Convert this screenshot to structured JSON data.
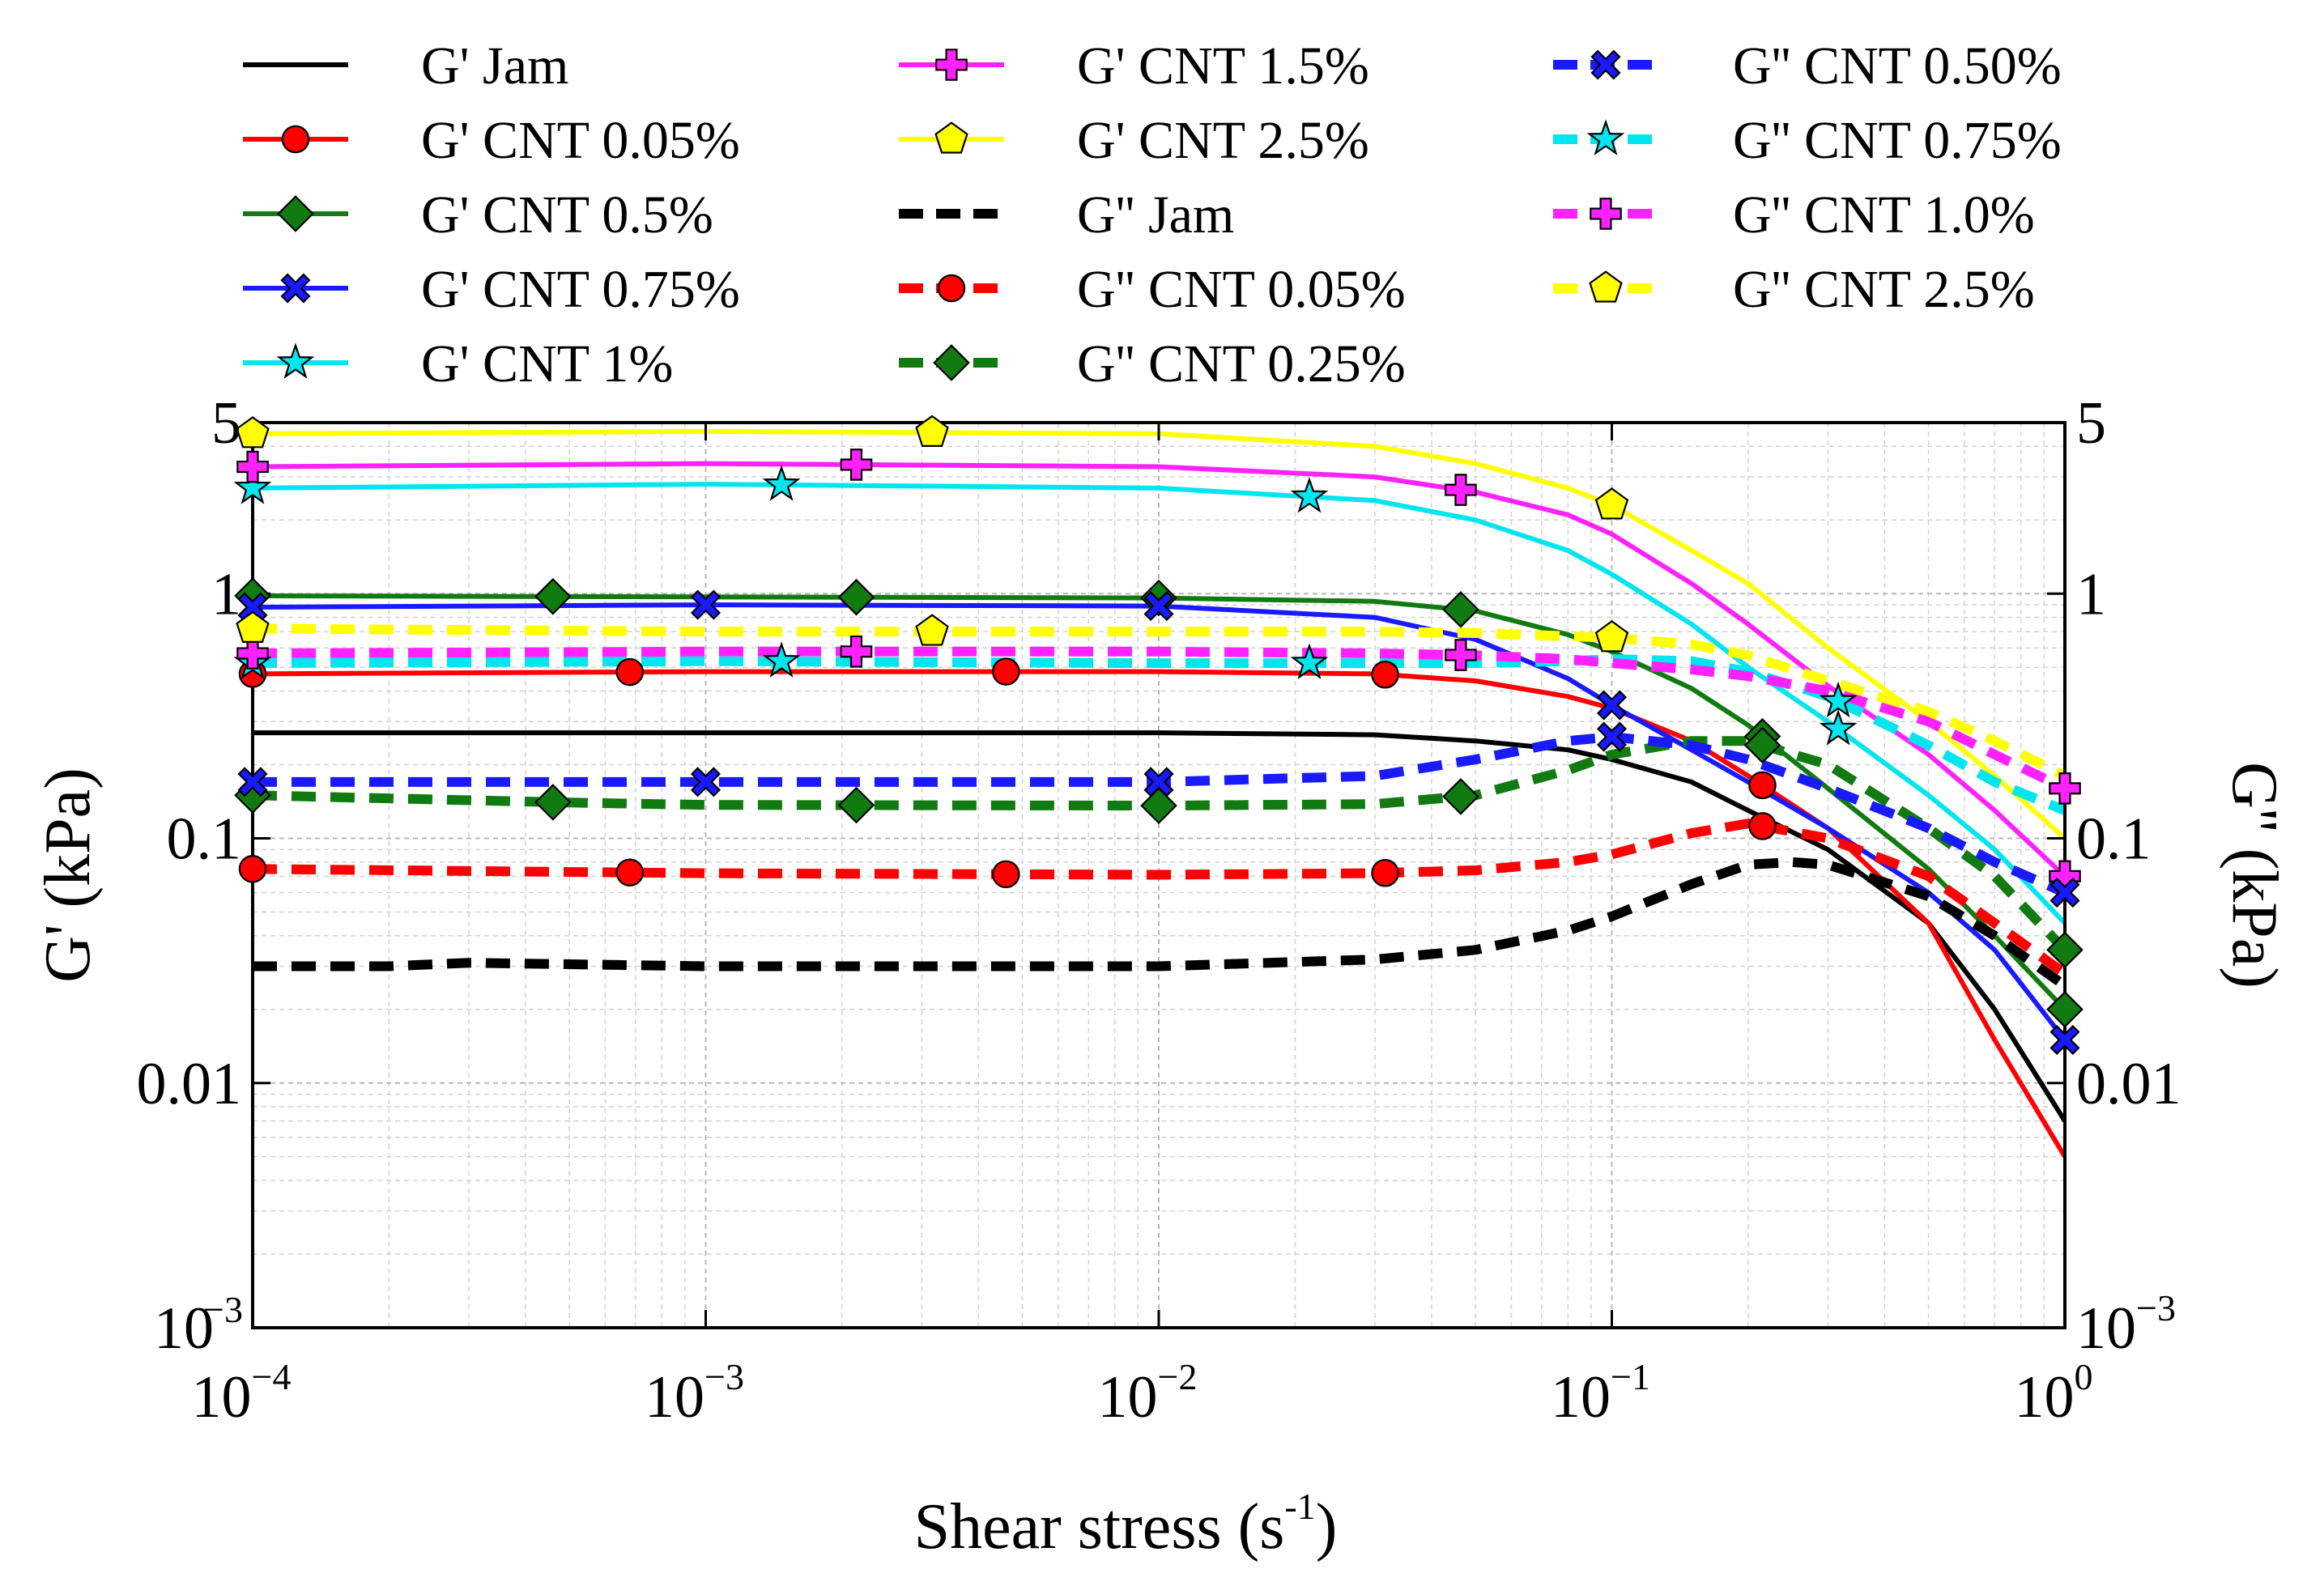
{
  "chart_data": {
    "type": "line",
    "xlabel": "Shear stress (s",
    "xlabel_sup": "-1",
    "xlabel_close": ")",
    "ylabel_left": "G' (kPa)",
    "ylabel_right": "G'' (kPa)",
    "xscale": "log",
    "yscale": "log",
    "xlim": [
      0.0001,
      1
    ],
    "ylim": [
      0.001,
      5
    ],
    "grid": true,
    "legend_position": "top, 3 columns",
    "x_ticks": [
      {
        "value": 0.0001,
        "base": "10",
        "exp": "−4"
      },
      {
        "value": 0.001,
        "base": "10",
        "exp": "−3"
      },
      {
        "value": 0.01,
        "base": "10",
        "exp": "−2"
      },
      {
        "value": 0.1,
        "base": "10",
        "exp": "−1"
      },
      {
        "value": 1,
        "base": "10",
        "exp": "0"
      }
    ],
    "y_ticks": [
      {
        "value": 0.001,
        "base": "10",
        "exp": "−3"
      },
      {
        "value": 0.01,
        "label": "0.01"
      },
      {
        "value": 0.1,
        "label": "0.1"
      },
      {
        "value": 1,
        "label": "1"
      },
      {
        "value": 5,
        "label": "5"
      }
    ],
    "series": [
      {
        "name": "G' Jam",
        "color": "#000000",
        "dash": false,
        "marker": "none",
        "legend_col": 0,
        "x": [
          0.0001,
          0.001,
          0.01,
          0.03,
          0.05,
          0.08,
          0.1,
          0.15,
          0.2,
          0.3,
          0.5,
          0.7,
          1
        ],
        "y": [
          0.27,
          0.27,
          0.27,
          0.265,
          0.25,
          0.23,
          0.21,
          0.17,
          0.13,
          0.09,
          0.045,
          0.02,
          0.007
        ],
        "marker_x": []
      },
      {
        "name": "G' CNT 0.05%",
        "color": "#ff0000",
        "dash": false,
        "marker": "circle",
        "legend_col": 0,
        "x": [
          0.0001,
          0.001,
          0.01,
          0.03,
          0.05,
          0.08,
          0.1,
          0.15,
          0.2,
          0.3,
          0.5,
          0.7,
          1
        ],
        "y": [
          0.47,
          0.48,
          0.48,
          0.47,
          0.44,
          0.38,
          0.34,
          0.25,
          0.18,
          0.11,
          0.045,
          0.015,
          0.005
        ],
        "marker_x": [
          0.0001,
          0.00068,
          0.0046,
          0.0316,
          0.215
        ]
      },
      {
        "name": "G' CNT 0.5%",
        "color": "#117a11",
        "dash": false,
        "marker": "diamond",
        "legend_col": 0,
        "x": [
          0.0001,
          0.001,
          0.01,
          0.03,
          0.05,
          0.08,
          0.1,
          0.15,
          0.2,
          0.3,
          0.5,
          0.7,
          1
        ],
        "y": [
          0.98,
          0.97,
          0.96,
          0.93,
          0.85,
          0.68,
          0.58,
          0.41,
          0.29,
          0.16,
          0.075,
          0.04,
          0.02
        ],
        "marker_x": [
          0.0001,
          0.00046,
          0.00215,
          0.01,
          0.0464,
          0.215,
          1
        ]
      },
      {
        "name": "G' CNT 0.75%",
        "color": "#1a1aff",
        "dash": false,
        "marker": "x",
        "legend_col": 0,
        "x": [
          0.0001,
          0.001,
          0.01,
          0.03,
          0.05,
          0.08,
          0.1,
          0.15,
          0.2,
          0.3,
          0.5,
          0.7,
          1
        ],
        "y": [
          0.88,
          0.9,
          0.89,
          0.8,
          0.65,
          0.45,
          0.35,
          0.23,
          0.17,
          0.11,
          0.06,
          0.035,
          0.015
        ],
        "marker_x": [
          0.0001,
          0.001,
          0.01,
          0.1,
          1
        ]
      },
      {
        "name": "G' CNT 1%",
        "color": "#00e5ee",
        "dash": false,
        "marker": "star",
        "legend_col": 0,
        "x": [
          0.0001,
          0.001,
          0.01,
          0.03,
          0.05,
          0.08,
          0.1,
          0.15,
          0.2,
          0.3,
          0.5,
          0.7,
          1
        ],
        "y": [
          2.7,
          2.8,
          2.7,
          2.4,
          2.0,
          1.5,
          1.2,
          0.75,
          0.5,
          0.3,
          0.15,
          0.09,
          0.045
        ],
        "marker_x": [
          0.0001,
          0.00147,
          0.0215,
          0.316
        ]
      },
      {
        "name": "G' CNT 1.5%",
        "color": "#ff22ff",
        "dash": false,
        "marker": "plus",
        "legend_col": 1,
        "x": [
          0.0001,
          0.001,
          0.01,
          0.03,
          0.05,
          0.08,
          0.1,
          0.15,
          0.2,
          0.3,
          0.5,
          0.7,
          1
        ],
        "y": [
          3.3,
          3.4,
          3.3,
          3.0,
          2.6,
          2.1,
          1.75,
          1.1,
          0.75,
          0.42,
          0.22,
          0.13,
          0.07
        ],
        "marker_x": [
          0.0001,
          0.00215,
          0.0464,
          1
        ]
      },
      {
        "name": "G' CNT 2.5%",
        "color": "#ffff00",
        "dash": false,
        "marker": "pentagon",
        "legend_col": 1,
        "x": [
          0.0001,
          0.001,
          0.01,
          0.03,
          0.05,
          0.08,
          0.1,
          0.15,
          0.2,
          0.3,
          0.5,
          0.7,
          1
        ],
        "y": [
          4.5,
          4.6,
          4.5,
          4.0,
          3.4,
          2.7,
          2.3,
          1.5,
          1.1,
          0.6,
          0.3,
          0.18,
          0.1
        ],
        "marker_x": [
          0.0001,
          0.00316,
          0.1
        ]
      },
      {
        "name": "G'' Jam",
        "color": "#000000",
        "dash": true,
        "marker": "none",
        "legend_col": 1,
        "x": [
          0.0001,
          0.0002,
          0.0003,
          0.001,
          0.01,
          0.03,
          0.05,
          0.08,
          0.1,
          0.15,
          0.2,
          0.25,
          0.3,
          0.5,
          0.7,
          1
        ],
        "y": [
          0.03,
          0.03,
          0.031,
          0.03,
          0.03,
          0.032,
          0.035,
          0.042,
          0.048,
          0.065,
          0.078,
          0.08,
          0.078,
          0.058,
          0.04,
          0.025
        ],
        "marker_x": []
      },
      {
        "name": "G'' CNT 0.05%",
        "color": "#ff0000",
        "dash": true,
        "marker": "circle",
        "legend_col": 1,
        "x": [
          0.0001,
          0.001,
          0.01,
          0.03,
          0.05,
          0.08,
          0.1,
          0.15,
          0.2,
          0.3,
          0.5,
          0.7,
          1
        ],
        "y": [
          0.075,
          0.072,
          0.071,
          0.072,
          0.074,
          0.08,
          0.086,
          0.105,
          0.115,
          0.1,
          0.07,
          0.045,
          0.028
        ],
        "marker_x": [
          0.0001,
          0.00068,
          0.0046,
          0.0316,
          0.215
        ]
      },
      {
        "name": "G'' CNT 0.25%",
        "color": "#117a11",
        "dash": true,
        "marker": "diamond",
        "legend_col": 1,
        "x": [
          0.0001,
          0.0005,
          0.001,
          0.01,
          0.03,
          0.05,
          0.08,
          0.1,
          0.15,
          0.2,
          0.3,
          0.5,
          0.7,
          1
        ],
        "y": [
          0.15,
          0.14,
          0.137,
          0.136,
          0.138,
          0.15,
          0.19,
          0.22,
          0.25,
          0.25,
          0.2,
          0.11,
          0.07,
          0.035
        ],
        "marker_x": [
          0.0001,
          0.00046,
          0.00215,
          0.01,
          0.0464,
          0.215,
          1
        ]
      },
      {
        "name": "G'' CNT 0.50%",
        "color": "#1a1aff",
        "dash": true,
        "marker": "x",
        "legend_col": 2,
        "x": [
          0.0001,
          0.001,
          0.01,
          0.03,
          0.05,
          0.08,
          0.1,
          0.15,
          0.2,
          0.3,
          0.5,
          0.7,
          1
        ],
        "y": [
          0.17,
          0.17,
          0.17,
          0.18,
          0.21,
          0.25,
          0.26,
          0.24,
          0.21,
          0.16,
          0.11,
          0.08,
          0.06
        ],
        "marker_x": [
          0.0001,
          0.001,
          0.01,
          0.1,
          1
        ]
      },
      {
        "name": "G'' CNT 0.75%",
        "color": "#00e5ee",
        "dash": true,
        "marker": "star",
        "legend_col": 2,
        "x": [
          0.0001,
          0.001,
          0.01,
          0.03,
          0.05,
          0.08,
          0.1,
          0.15,
          0.2,
          0.3,
          0.5,
          0.7,
          1
        ],
        "y": [
          0.52,
          0.53,
          0.52,
          0.52,
          0.52,
          0.53,
          0.54,
          0.53,
          0.48,
          0.38,
          0.24,
          0.17,
          0.13
        ],
        "marker_x": [
          0.0001,
          0.00147,
          0.0215,
          0.316
        ]
      },
      {
        "name": "G'' CNT 1.0%",
        "color": "#ff22ff",
        "dash": true,
        "marker": "plus",
        "legend_col": 2,
        "x": [
          0.0001,
          0.001,
          0.01,
          0.03,
          0.05,
          0.08,
          0.1,
          0.15,
          0.2,
          0.3,
          0.5,
          0.7,
          1
        ],
        "y": [
          0.57,
          0.58,
          0.58,
          0.57,
          0.56,
          0.54,
          0.52,
          0.49,
          0.46,
          0.4,
          0.3,
          0.22,
          0.16
        ],
        "marker_x": [
          0.0001,
          0.00215,
          0.0464,
          1
        ]
      },
      {
        "name": "G'' CNT 2.5%",
        "color": "#ffff00",
        "dash": true,
        "marker": "pentagon",
        "legend_col": 2,
        "x": [
          0.0001,
          0.001,
          0.01,
          0.03,
          0.05,
          0.08,
          0.1,
          0.15,
          0.2,
          0.3,
          0.5,
          0.7,
          1
        ],
        "y": [
          0.72,
          0.7,
          0.7,
          0.7,
          0.69,
          0.67,
          0.66,
          0.62,
          0.56,
          0.44,
          0.33,
          0.25,
          0.18
        ],
        "marker_x": [
          0.0001,
          0.00316,
          0.1
        ]
      }
    ]
  }
}
